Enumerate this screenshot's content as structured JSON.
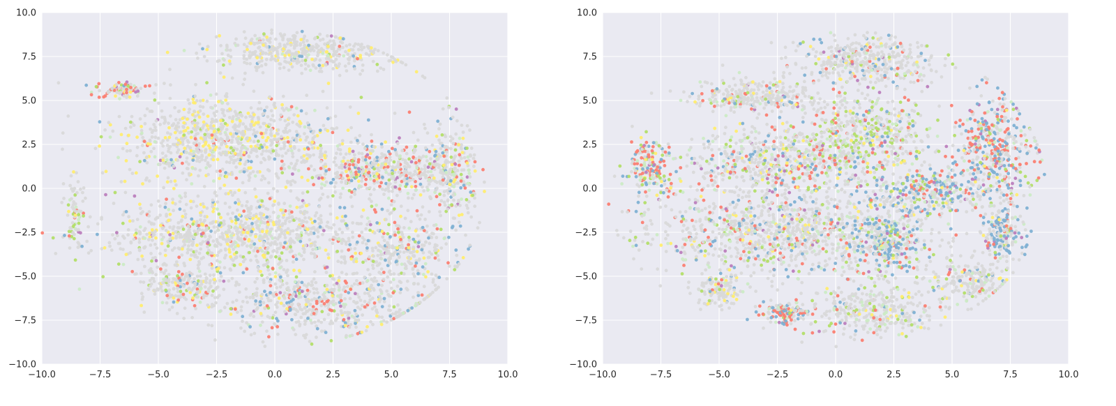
{
  "figure": {
    "background": "#ffffff",
    "axes_facecolor": "#eaeaf2",
    "grid_color": "#ffffff",
    "tick_label_color": "#262626"
  },
  "palette": [
    "#d9d9d9",
    "#fb8072",
    "#80b1d3",
    "#ffed6f",
    "#b3de69",
    "#ccebc5",
    "#bc80bd",
    "#fccde5",
    "#8dd3c7",
    "#fdb462",
    "#bebada",
    "#ffffb3"
  ],
  "chart_data": [
    {
      "type": "scatter",
      "title": "",
      "xlabel": "",
      "ylabel": "",
      "xlim": [
        -10,
        10
      ],
      "ylim": [
        -10,
        10
      ],
      "grid": true,
      "legend": null,
      "x_ticks": [
        -10,
        -7.5,
        -5,
        -2.5,
        0,
        2.5,
        5,
        7.5,
        10
      ],
      "y_ticks": [
        -10,
        -7.5,
        -5,
        -2.5,
        0,
        2.5,
        5,
        7.5,
        10
      ],
      "x_tick_labels": [
        "−10.0",
        "−7.5",
        "−5.0",
        "−2.5",
        "0.0",
        "2.5",
        "5.0",
        "7.5",
        "10.0"
      ],
      "y_tick_labels": [
        "−10.0",
        "−7.5",
        "−5.0",
        "−2.5",
        "0.0",
        "2.5",
        "5.0",
        "7.5",
        "10.0"
      ],
      "description_of_points": "dense t-SNE style embedding, mostly light grey with scattered yellow, red, blue, green, purple points",
      "clusters": [
        {
          "cx": -8.6,
          "cy": -1.5,
          "rx": 0.3,
          "ry": 2.2,
          "n": 70,
          "w": [
            5,
            1,
            0.5,
            0.5,
            2,
            2,
            0.5
          ]
        },
        {
          "cx": -6.7,
          "cy": 5.6,
          "rx": 1.2,
          "ry": 0.45,
          "n": 90,
          "w": [
            4,
            2.5,
            0.8,
            1,
            1,
            1,
            1
          ]
        },
        {
          "cx": 1.0,
          "cy": 7.8,
          "rx": 3.6,
          "ry": 1.0,
          "n": 450,
          "w": [
            10,
            0.3,
            0.3,
            1.2,
            0.5,
            0.5,
            0.1
          ]
        },
        {
          "cx": -2.0,
          "cy": 2.8,
          "rx": 4.2,
          "ry": 2.2,
          "n": 900,
          "w": [
            8,
            0.4,
            0.3,
            2.2,
            0.4,
            0.6,
            0.1
          ]
        },
        {
          "cx": 4.5,
          "cy": 1.0,
          "rx": 3.0,
          "ry": 1.6,
          "n": 500,
          "w": [
            8,
            2,
            1.2,
            0.8,
            0.8,
            0.8,
            0.3
          ]
        },
        {
          "cx": -1.5,
          "cy": -2.5,
          "rx": 5.2,
          "ry": 2.0,
          "n": 1000,
          "w": [
            10,
            0.4,
            0.5,
            1.5,
            0.6,
            0.8,
            0.2
          ]
        },
        {
          "cx": 2.0,
          "cy": -6.5,
          "rx": 4.5,
          "ry": 1.8,
          "n": 600,
          "w": [
            9,
            1.2,
            1.0,
            0.8,
            0.6,
            0.6,
            0.2
          ]
        },
        {
          "cx": -4.0,
          "cy": -5.5,
          "rx": 1.6,
          "ry": 1.0,
          "n": 200,
          "w": [
            9,
            0.6,
            0.4,
            1.5,
            0.4,
            0.4,
            0.1
          ]
        },
        {
          "cx": 7.5,
          "cy": 1.0,
          "rx": 1.0,
          "ry": 2.6,
          "n": 250,
          "w": [
            8,
            1.2,
            1.0,
            0.8,
            0.8,
            1.0,
            0.3
          ]
        },
        {
          "cx": 5.5,
          "cy": -3.5,
          "rx": 2.2,
          "ry": 1.8,
          "n": 300,
          "w": [
            9,
            0.8,
            1.2,
            1.0,
            0.6,
            0.6,
            0.2
          ]
        }
      ]
    },
    {
      "type": "scatter",
      "title": "",
      "xlabel": "",
      "ylabel": "",
      "xlim": [
        -10,
        10
      ],
      "ylim": [
        -10,
        10
      ],
      "grid": true,
      "legend": null,
      "x_ticks": [
        -10,
        -7.5,
        -5,
        -2.5,
        0,
        2.5,
        5,
        7.5,
        10
      ],
      "y_ticks": [
        -10,
        -7.5,
        -5,
        -2.5,
        0,
        2.5,
        5,
        7.5,
        10
      ],
      "x_tick_labels": [
        "−10.0",
        "−7.5",
        "−5.0",
        "−2.5",
        "0.0",
        "2.5",
        "5.0",
        "7.5",
        "10.0"
      ],
      "y_tick_labels": [
        "−10.0",
        "−7.5",
        "−5.0",
        "−2.5",
        "0.0",
        "2.5",
        "5.0",
        "7.5",
        "10.0"
      ],
      "description_of_points": "same embedding recolored; more blue and red clusters on the right, green streak near center-top",
      "clusters": [
        {
          "cx": -8.0,
          "cy": 1.2,
          "rx": 0.9,
          "ry": 1.5,
          "n": 180,
          "w": [
            3,
            3,
            1.5,
            1,
            1,
            1,
            0.6
          ]
        },
        {
          "cx": -3.5,
          "cy": 5.2,
          "rx": 2.5,
          "ry": 0.8,
          "n": 300,
          "w": [
            9,
            0.8,
            0.6,
            0.6,
            0.5,
            0.6,
            0.2
          ]
        },
        {
          "cx": 1.2,
          "cy": 7.2,
          "rx": 3.0,
          "ry": 1.3,
          "n": 420,
          "w": [
            9,
            0.6,
            0.8,
            0.4,
            0.5,
            0.4,
            0.2
          ]
        },
        {
          "cx": 1.3,
          "cy": 3.0,
          "rx": 2.5,
          "ry": 2.0,
          "n": 500,
          "w": [
            6,
            1.0,
            0.8,
            0.6,
            2.4,
            1.0,
            0.2
          ]
        },
        {
          "cx": -2.5,
          "cy": 1.5,
          "rx": 3.6,
          "ry": 1.8,
          "n": 600,
          "w": [
            7,
            1.6,
            1.2,
            0.4,
            0.8,
            1.0,
            0.3
          ]
        },
        {
          "cx": 6.8,
          "cy": 2.5,
          "rx": 1.5,
          "ry": 2.4,
          "n": 400,
          "w": [
            3,
            3,
            3,
            0.3,
            0.5,
            0.5,
            0.5
          ]
        },
        {
          "cx": 4.5,
          "cy": -0.2,
          "rx": 3.0,
          "ry": 1.2,
          "n": 350,
          "w": [
            4,
            1.2,
            3.5,
            0.3,
            0.8,
            0.8,
            0.3
          ]
        },
        {
          "cx": -2.0,
          "cy": -2.5,
          "rx": 5.5,
          "ry": 2.2,
          "n": 1100,
          "w": [
            10,
            1.0,
            1.5,
            0.6,
            0.8,
            1.2,
            0.2
          ]
        },
        {
          "cx": 2.3,
          "cy": -3.0,
          "rx": 1.2,
          "ry": 1.6,
          "n": 260,
          "w": [
            3,
            0.6,
            4,
            0.2,
            0.6,
            0.6,
            0.2
          ]
        },
        {
          "cx": -2.2,
          "cy": -7.0,
          "rx": 1.0,
          "ry": 0.6,
          "n": 120,
          "w": [
            3,
            3,
            3,
            0.3,
            0.3,
            0.5,
            0.1
          ]
        },
        {
          "cx": 1.5,
          "cy": -7.0,
          "rx": 2.6,
          "ry": 1.5,
          "n": 350,
          "w": [
            8,
            0.6,
            0.6,
            0.6,
            1.2,
            1.0,
            0.1
          ]
        },
        {
          "cx": -5.0,
          "cy": -5.8,
          "rx": 1.0,
          "ry": 0.9,
          "n": 130,
          "w": [
            8,
            0.4,
            0.6,
            1.0,
            0.4,
            0.6,
            0.1
          ]
        },
        {
          "cx": 7.2,
          "cy": -2.6,
          "rx": 0.7,
          "ry": 1.3,
          "n": 180,
          "w": [
            4,
            1.0,
            4,
            0.3,
            0.5,
            0.5,
            0.4
          ]
        },
        {
          "cx": 5.8,
          "cy": -5.2,
          "rx": 1.6,
          "ry": 1.2,
          "n": 200,
          "w": [
            9,
            0.6,
            0.8,
            0.4,
            1.0,
            1.0,
            0.2
          ]
        }
      ]
    }
  ]
}
